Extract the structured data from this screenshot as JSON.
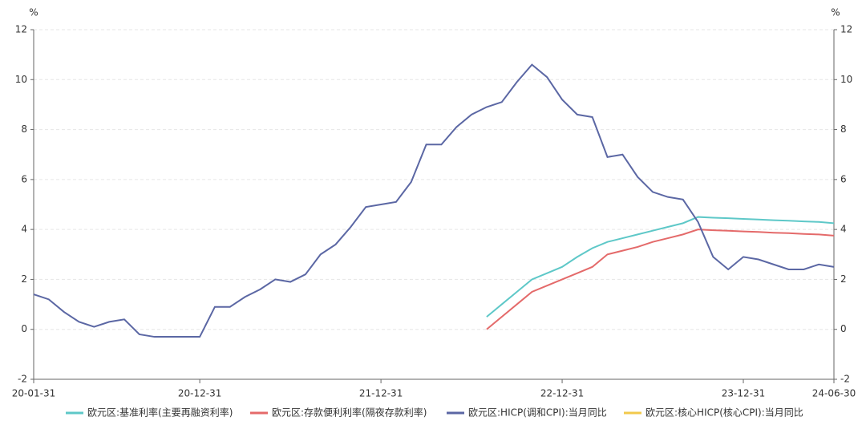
{
  "chart_data": {
    "type": "line",
    "y_label": "%",
    "y2_label": "%",
    "categories": [
      "20-01-31",
      null,
      null,
      null,
      null,
      null,
      null,
      null,
      null,
      null,
      null,
      "20-12-31",
      null,
      null,
      null,
      null,
      null,
      null,
      null,
      null,
      null,
      null,
      null,
      "21-12-31",
      null,
      null,
      null,
      null,
      null,
      null,
      null,
      null,
      null,
      null,
      null,
      "22-12-31",
      null,
      null,
      null,
      null,
      null,
      null,
      null,
      null,
      null,
      null,
      null,
      "23-12-31",
      null,
      null,
      null,
      null,
      null,
      "24-06-30"
    ],
    "series": [
      {
        "name": "欧元区:基准利率(主要再融资利率)",
        "color": "#5ec8c8",
        "values": [
          null,
          null,
          null,
          null,
          null,
          null,
          null,
          null,
          null,
          null,
          null,
          null,
          null,
          null,
          null,
          null,
          null,
          null,
          null,
          null,
          null,
          null,
          null,
          null,
          null,
          null,
          null,
          null,
          null,
          null,
          0.5,
          1.0,
          1.5,
          2.0,
          2.25,
          2.5,
          2.9,
          3.25,
          3.5,
          3.65,
          3.8,
          3.95,
          4.1,
          4.25,
          4.5,
          4.47,
          4.45,
          4.42,
          4.4,
          4.37,
          4.35,
          4.32,
          4.3,
          4.25
        ]
      },
      {
        "name": "欧元区:存款便利利率(隔夜存款利率)",
        "color": "#e46a6a",
        "values": [
          null,
          null,
          null,
          null,
          null,
          null,
          null,
          null,
          null,
          null,
          null,
          null,
          null,
          null,
          null,
          null,
          null,
          null,
          null,
          null,
          null,
          null,
          null,
          null,
          null,
          null,
          null,
          null,
          null,
          null,
          0.0,
          0.5,
          1.0,
          1.5,
          1.75,
          2.0,
          2.25,
          2.5,
          3.0,
          3.15,
          3.3,
          3.5,
          3.65,
          3.8,
          4.0,
          3.97,
          3.95,
          3.92,
          3.9,
          3.87,
          3.85,
          3.82,
          3.8,
          3.75
        ]
      },
      {
        "name": "欧元区:HICP(调和CPI):当月同比",
        "color": "#5b67a4",
        "values": [
          1.4,
          1.2,
          0.7,
          0.3,
          0.1,
          0.3,
          0.4,
          -0.2,
          -0.3,
          -0.3,
          -0.3,
          -0.3,
          0.9,
          0.9,
          1.3,
          1.6,
          2.0,
          1.9,
          2.2,
          3.0,
          3.4,
          4.1,
          4.9,
          5.0,
          5.1,
          5.9,
          7.4,
          7.4,
          8.1,
          8.6,
          8.9,
          9.1,
          9.9,
          10.6,
          10.1,
          9.2,
          8.6,
          8.5,
          6.9,
          7.0,
          6.1,
          5.5,
          5.3,
          5.2,
          4.3,
          2.9,
          2.4,
          2.9,
          2.8,
          2.6,
          2.4,
          2.4,
          2.6,
          2.5
        ]
      },
      {
        "name": "欧元区:核心HICP(核心CPI):当月同比",
        "color": "#f2c94c",
        "values": [
          null,
          null,
          null,
          null,
          null,
          null,
          null,
          null,
          null,
          null,
          null,
          null,
          null,
          null,
          null,
          null,
          null,
          null,
          null,
          null,
          null,
          null,
          null,
          null,
          null,
          null,
          null,
          null,
          null,
          null,
          null,
          null,
          null,
          null,
          null,
          null,
          null,
          null,
          null,
          null,
          null,
          null,
          null,
          null,
          null,
          null,
          null,
          null,
          null,
          null,
          null,
          null,
          null,
          null
        ]
      }
    ],
    "ylim": [
      -2,
      12
    ],
    "yticks": [
      -2,
      0,
      2,
      4,
      6,
      8,
      10,
      12
    ],
    "y2lim": [
      -2,
      12
    ],
    "y2ticks": [
      -2,
      0,
      2,
      4,
      6,
      8,
      10,
      12
    ],
    "grid": true
  }
}
